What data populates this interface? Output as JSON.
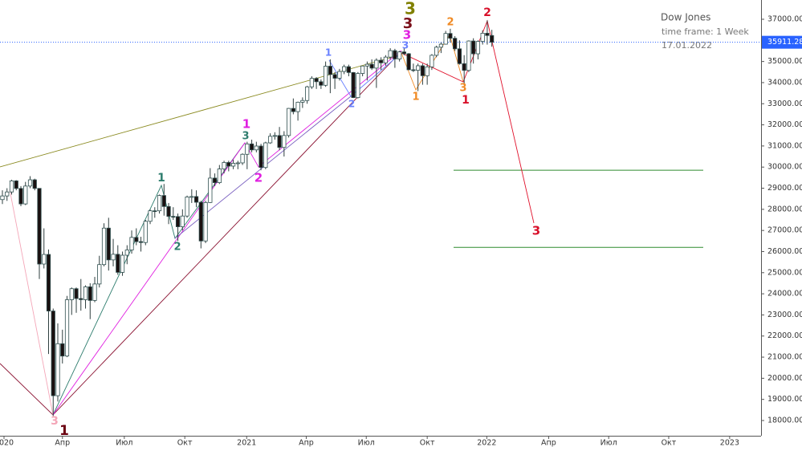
{
  "chart_data": {
    "type": "candlestick",
    "info": {
      "title": "Dow Jones",
      "timeframe": "time frame: 1 Week",
      "date": "17.01.2022"
    },
    "last_price": {
      "value": 35911.28,
      "label": "35911.28"
    },
    "levels": [
      29850,
      26200
    ],
    "xlim": [
      -0.52,
      164.3
    ],
    "xticks": [
      {
        "value": 0.35,
        "label": "2020"
      },
      {
        "value": 13.0,
        "label": "Апр"
      },
      {
        "value": 26.4,
        "label": "Июл"
      },
      {
        "value": 39.5,
        "label": "Окт"
      },
      {
        "value": 52.9,
        "label": "2021"
      },
      {
        "value": 65.8,
        "label": "Апр"
      },
      {
        "value": 78.8,
        "label": "Июл"
      },
      {
        "value": 92.0,
        "label": "Окт"
      },
      {
        "value": 104.9,
        "label": "2022"
      },
      {
        "value": 118.3,
        "label": "Апр"
      },
      {
        "value": 131.3,
        "label": "Июл"
      },
      {
        "value": 144.3,
        "label": "Окт"
      },
      {
        "value": 157.5,
        "label": "2023"
      }
    ],
    "ylim": [
      17278,
      37912
    ],
    "yticks": [
      {
        "value": 18000,
        "label": "18000.00"
      },
      {
        "value": 19000,
        "label": "19000.00"
      },
      {
        "value": 20000,
        "label": "20000.00"
      },
      {
        "value": 21000,
        "label": "21000.00"
      },
      {
        "value": 22000,
        "label": "22000.00"
      },
      {
        "value": 23000,
        "label": "23000.00"
      },
      {
        "value": 24000,
        "label": "24000.00"
      },
      {
        "value": 25000,
        "label": "25000.00"
      },
      {
        "value": 26000,
        "label": "26000.00"
      },
      {
        "value": 27000,
        "label": "27000.00"
      },
      {
        "value": 28000,
        "label": "28000.00"
      },
      {
        "value": 29000,
        "label": "29000.00"
      },
      {
        "value": 30000,
        "label": "30000.00"
      },
      {
        "value": 31000,
        "label": "31000.00"
      },
      {
        "value": 32000,
        "label": "32000.00"
      },
      {
        "value": 33000,
        "label": "33000.00"
      },
      {
        "value": 34000,
        "label": "34000.00"
      },
      {
        "value": 35000,
        "label": "35000.00"
      },
      {
        "value": 36000,
        "label": "36000.00"
      },
      {
        "value": 37000,
        "label": "37000.00"
      }
    ],
    "wave_labels": [
      {
        "text": "3",
        "color": "#808000"
      },
      {
        "text": "3",
        "color": "#7a0f1a"
      },
      {
        "text": "3",
        "color": "#e020e0"
      },
      {
        "text": "3",
        "color": "#6a82ff"
      },
      {
        "text": "2",
        "color": "#f08a24"
      },
      {
        "text": "2",
        "color": "#d8102a"
      },
      {
        "text": "1",
        "color": "#f08a24"
      },
      {
        "text": "3",
        "color": "#f08a24"
      },
      {
        "text": "1",
        "color": "#d8102a"
      },
      {
        "text": "3",
        "color": "#d8102a"
      },
      {
        "text": "1",
        "color": "#6a82ff"
      },
      {
        "text": "2",
        "color": "#6a82ff"
      },
      {
        "text": "1",
        "color": "#e020e0"
      },
      {
        "text": "3",
        "color": "#2e7d6e"
      },
      {
        "text": "2",
        "color": "#e020e0"
      },
      {
        "text": "1",
        "color": "#2e7d6e"
      },
      {
        "text": "2",
        "color": "#2e7d6e"
      },
      {
        "text": "3",
        "color": "#f4a6b8"
      },
      {
        "text": "1",
        "color": "#6b0010"
      }
    ],
    "candles": [
      [
        0,
        28460,
        28900,
        28250,
        28634
      ],
      [
        1,
        28634,
        29000,
        28400,
        28823
      ],
      [
        2,
        28823,
        29400,
        28700,
        29348
      ],
      [
        3,
        29348,
        29380,
        28900,
        28989
      ],
      [
        4,
        28989,
        29100,
        28150,
        28256
      ],
      [
        5,
        28256,
        29300,
        28200,
        29102
      ],
      [
        6,
        29102,
        29570,
        29000,
        29398
      ],
      [
        7,
        29398,
        29450,
        28900,
        28992
      ],
      [
        8,
        28992,
        29000,
        24700,
        25409
      ],
      [
        9,
        25409,
        27100,
        25200,
        25864
      ],
      [
        10,
        25864,
        26100,
        21150,
        23185
      ],
      [
        11,
        23185,
        23300,
        18214,
        19174
      ],
      [
        12,
        19174,
        22600,
        18900,
        21636
      ],
      [
        13,
        21636,
        22300,
        20700,
        21052
      ],
      [
        14,
        21052,
        23900,
        21000,
        23719
      ],
      [
        15,
        23719,
        24300,
        23000,
        24242
      ],
      [
        16,
        24242,
        24300,
        23100,
        23775
      ],
      [
        17,
        23775,
        24700,
        23200,
        23723
      ],
      [
        18,
        23723,
        24400,
        23300,
        24331
      ],
      [
        19,
        24331,
        24500,
        22800,
        23685
      ],
      [
        20,
        23685,
        24800,
        23600,
        24465
      ],
      [
        21,
        24465,
        25800,
        24300,
        25383
      ],
      [
        22,
        25383,
        27340,
        25300,
        27111
      ],
      [
        23,
        27111,
        27600,
        25100,
        25605
      ],
      [
        24,
        25605,
        26600,
        25300,
        25871
      ],
      [
        25,
        25871,
        26300,
        24900,
        25015
      ],
      [
        26,
        25015,
        26000,
        24850,
        25827
      ],
      [
        27,
        25827,
        26300,
        25400,
        26075
      ],
      [
        28,
        26075,
        27000,
        25900,
        26671
      ],
      [
        29,
        26671,
        27100,
        26300,
        26470
      ],
      [
        30,
        26470,
        26700,
        26000,
        26428
      ],
      [
        31,
        26428,
        27500,
        26300,
        27433
      ],
      [
        32,
        27433,
        28000,
        27300,
        27931
      ],
      [
        33,
        27931,
        28100,
        27600,
        27930
      ],
      [
        34,
        27930,
        28700,
        27800,
        28654
      ],
      [
        35,
        28654,
        29200,
        27700,
        28133
      ],
      [
        36,
        28133,
        28300,
        27300,
        27666
      ],
      [
        37,
        27666,
        28100,
        27500,
        27657
      ],
      [
        38,
        27657,
        27800,
        26500,
        27174
      ],
      [
        39,
        27174,
        28000,
        27000,
        27682
      ],
      [
        40,
        27682,
        28650,
        27600,
        28586
      ],
      [
        41,
        28586,
        28950,
        28300,
        28606
      ],
      [
        42,
        28606,
        28900,
        28100,
        28335
      ],
      [
        43,
        28335,
        28400,
        26150,
        26501
      ],
      [
        44,
        26501,
        28400,
        26400,
        28323
      ],
      [
        45,
        28323,
        29950,
        28300,
        29479
      ],
      [
        46,
        29479,
        29700,
        29100,
        29263
      ],
      [
        47,
        29263,
        30100,
        29200,
        29910
      ],
      [
        48,
        29910,
        30300,
        29700,
        30218
      ],
      [
        49,
        30218,
        30300,
        29800,
        30046
      ],
      [
        50,
        30046,
        30350,
        29900,
        30179
      ],
      [
        51,
        30179,
        30300,
        29900,
        30199
      ],
      [
        52,
        30199,
        30650,
        30100,
        30606
      ],
      [
        53,
        30606,
        31200,
        29900,
        31097
      ],
      [
        54,
        31097,
        31300,
        30700,
        30814
      ],
      [
        55,
        30814,
        31200,
        30700,
        30996
      ],
      [
        56,
        30996,
        31100,
        29850,
        29982
      ],
      [
        57,
        29982,
        31200,
        29900,
        31148
      ],
      [
        58,
        31148,
        31600,
        31100,
        31458
      ],
      [
        59,
        31458,
        31650,
        31300,
        31494
      ],
      [
        60,
        31494,
        31900,
        30800,
        30932
      ],
      [
        61,
        30932,
        31700,
        30500,
        31496
      ],
      [
        62,
        31496,
        32800,
        31400,
        32778
      ],
      [
        63,
        32778,
        33250,
        32500,
        32627
      ],
      [
        64,
        32627,
        33100,
        32200,
        33072
      ],
      [
        65,
        33072,
        33300,
        32800,
        33153
      ],
      [
        66,
        33153,
        33850,
        33000,
        33800
      ],
      [
        67,
        33800,
        34300,
        33700,
        34200
      ],
      [
        68,
        34200,
        34260,
        33700,
        34043
      ],
      [
        69,
        34043,
        34150,
        33700,
        33874
      ],
      [
        70,
        33874,
        35000,
        33800,
        34777
      ],
      [
        71,
        34777,
        35100,
        33500,
        34382
      ],
      [
        72,
        34382,
        34500,
        33700,
        34207
      ],
      [
        73,
        34207,
        34650,
        34100,
        34529
      ],
      [
        74,
        34529,
        34850,
        34400,
        34756
      ],
      [
        75,
        34756,
        34850,
        34300,
        34479
      ],
      [
        76,
        34479,
        34500,
        33270,
        33290
      ],
      [
        77,
        33290,
        34500,
        33250,
        34433
      ],
      [
        78,
        34433,
        34800,
        34300,
        34786
      ],
      [
        79,
        34786,
        35000,
        34100,
        34870
      ],
      [
        80,
        34870,
        35100,
        34600,
        34687
      ],
      [
        81,
        34687,
        35150,
        33750,
        35061
      ],
      [
        82,
        35061,
        35200,
        34600,
        34935
      ],
      [
        83,
        34935,
        35300,
        34800,
        35208
      ],
      [
        84,
        35208,
        35630,
        35100,
        35515
      ],
      [
        85,
        35515,
        35600,
        34700,
        35120
      ],
      [
        86,
        35120,
        35500,
        35000,
        35455
      ],
      [
        87,
        35455,
        35650,
        35300,
        35369
      ],
      [
        88,
        35369,
        35400,
        34600,
        34608
      ],
      [
        89,
        34608,
        34900,
        34500,
        34584
      ],
      [
        90,
        34584,
        34900,
        33600,
        34798
      ],
      [
        91,
        34798,
        34900,
        33900,
        34326
      ],
      [
        92,
        34326,
        34900,
        33900,
        34746
      ],
      [
        93,
        34746,
        35350,
        34600,
        35294
      ],
      [
        94,
        35294,
        35750,
        35200,
        35677
      ],
      [
        95,
        35677,
        35900,
        35400,
        35820
      ],
      [
        96,
        35820,
        36450,
        35800,
        36327
      ],
      [
        97,
        36327,
        36550,
        35900,
        36100
      ],
      [
        98,
        36100,
        36200,
        35500,
        35601
      ],
      [
        99,
        35601,
        36000,
        34850,
        34899
      ],
      [
        100,
        34899,
        35300,
        33900,
        34580
      ],
      [
        101,
        34580,
        36000,
        34500,
        35971
      ],
      [
        102,
        35971,
        36100,
        34900,
        35365
      ],
      [
        103,
        35365,
        36000,
        35100,
        35950
      ],
      [
        104,
        35950,
        36480,
        35800,
        36338
      ],
      [
        105,
        36338,
        36950,
        35800,
        36231
      ],
      [
        106,
        36231,
        36500,
        35700,
        35911.28
      ]
    ]
  }
}
